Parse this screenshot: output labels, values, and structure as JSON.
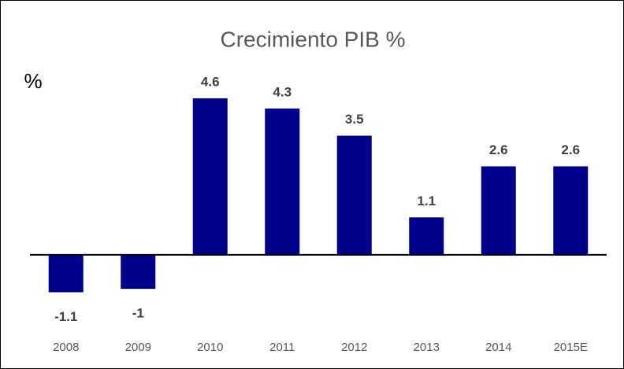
{
  "chart_data": {
    "type": "bar",
    "title": "Crecimiento PIB %",
    "y_label": "%",
    "categories": [
      "2008",
      "2009",
      "2010",
      "2011",
      "2012",
      "2013",
      "2014",
      "2015E"
    ],
    "values": [
      -1.1,
      -1,
      4.6,
      4.3,
      3.5,
      1.1,
      2.6,
      2.6
    ],
    "color": "#00008b",
    "ylim": [
      -2.5,
      5.5
    ],
    "grid": false
  }
}
